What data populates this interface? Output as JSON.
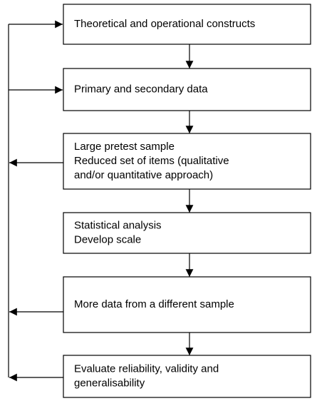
{
  "nodes": [
    {
      "lines": [
        "Theoretical and operational constructs"
      ]
    },
    {
      "lines": [
        "Primary and secondary data"
      ]
    },
    {
      "lines": [
        "Large pretest sample",
        "Reduced set of items (qualitative",
        "and/or quantitative approach)"
      ]
    },
    {
      "lines": [
        "Statistical analysis",
        "Develop scale"
      ]
    },
    {
      "lines": [
        "More data from a different sample"
      ]
    },
    {
      "lines": [
        "Evaluate reliability, validity and",
        "generalisability"
      ]
    }
  ]
}
